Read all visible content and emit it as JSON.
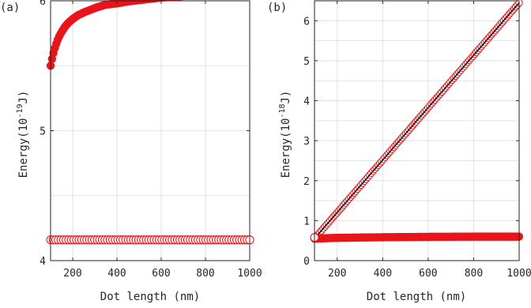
{
  "chart_data": [
    {
      "type": "scatter",
      "panel_label": "(a)",
      "xlabel": "Dot length (nm)",
      "ylabel_base": "Energy(10",
      "ylabel_exp": "-19",
      "ylabel_unit": "J)",
      "xlim": [
        100,
        1000
      ],
      "ylim": [
        4,
        6
      ],
      "xticks": [
        200,
        400,
        600,
        800,
        1000
      ],
      "yticks": [
        4,
        5,
        6
      ],
      "grid": true,
      "series": [
        {
          "marker": "filled-circle",
          "color": "#e8151b",
          "x": [
            100,
            105,
            110,
            115,
            120,
            130,
            140,
            150,
            165,
            180,
            200,
            225,
            250,
            280,
            310,
            350,
            400,
            450,
            500,
            550,
            600,
            650,
            700,
            750,
            800,
            850,
            900,
            950,
            1000
          ],
          "y": [
            5.5,
            5.54,
            5.58,
            5.61,
            5.64,
            5.69,
            5.73,
            5.76,
            5.8,
            5.83,
            5.86,
            5.89,
            5.91,
            5.93,
            5.95,
            5.97,
            5.98,
            5.995,
            6.005,
            6.015,
            6.025,
            6.03,
            6.037,
            6.043,
            6.048,
            6.052,
            6.055,
            6.058,
            6.06
          ]
        },
        {
          "marker": "open-circle",
          "color": "#e8151b",
          "x": [
            100,
            1000
          ],
          "y": [
            4.16,
            4.16
          ]
        }
      ]
    },
    {
      "type": "scatter",
      "panel_label": "(b)",
      "xlabel": "Dot length (nm)",
      "ylabel_base": "Energy(10",
      "ylabel_exp": "-18",
      "ylabel_unit": "J)",
      "xlim": [
        100,
        1000
      ],
      "ylim": [
        0,
        6.5
      ],
      "xticks": [
        200,
        400,
        600,
        800,
        1000
      ],
      "yticks": [
        0,
        1,
        2,
        3,
        4,
        5,
        6
      ],
      "grid": true,
      "series": [
        {
          "marker": "open-circle-with-line",
          "color": "#e8151b",
          "x": [
            100,
            1000
          ],
          "y": [
            0.55,
            6.45
          ]
        },
        {
          "marker": "filled-circle",
          "color": "#e8151b",
          "x": [
            100,
            200,
            400,
            600,
            800,
            1000
          ],
          "y": [
            0.55,
            0.57,
            0.585,
            0.595,
            0.6,
            0.6
          ]
        },
        {
          "marker": "open-circle",
          "color": "#e8151b",
          "x": [
            100
          ],
          "y": [
            0.58
          ]
        }
      ]
    }
  ]
}
